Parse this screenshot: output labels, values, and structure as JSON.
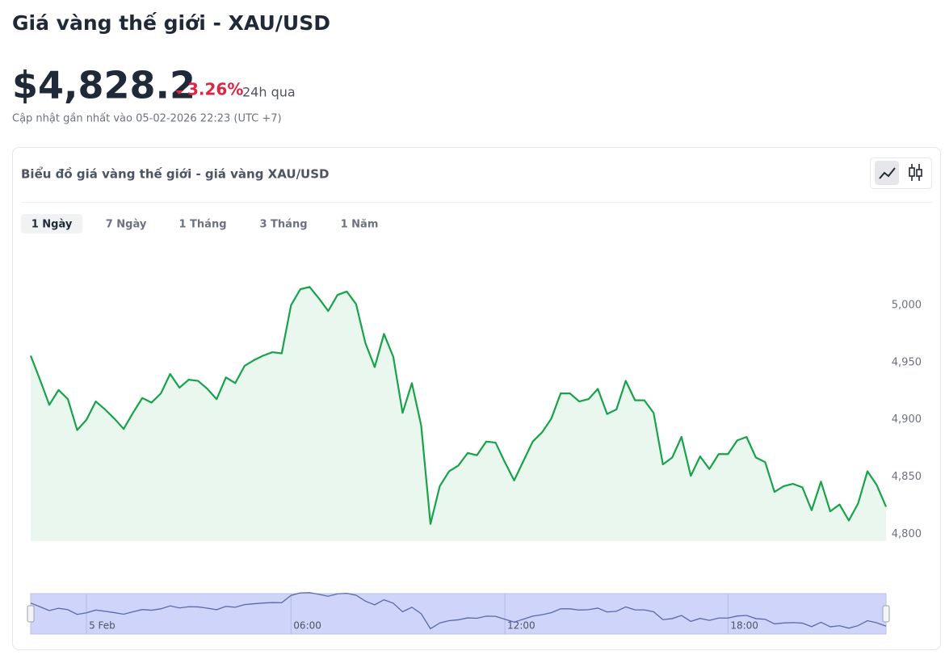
{
  "header": {
    "title": "Giá vàng thế giới - XAU/USD",
    "price": "$4,828.2",
    "change": "3.26%",
    "period": "24h qua",
    "updated": "Cập nhật gần nhất vào 05-02-2026 22:23 (UTC +7)"
  },
  "card": {
    "title": "Biểu đồ giá vàng thế giới - giá vàng XAU/USD",
    "tabs": [
      "1 Ngày",
      "7 Ngày",
      "1 Tháng",
      "3 Tháng",
      "1 Năm"
    ]
  },
  "chart_data": {
    "type": "area",
    "color": "#16a34a",
    "values": [
      4956,
      4935,
      4913,
      4926,
      4918,
      4891,
      4900,
      4916,
      4909,
      4901,
      4892,
      4906,
      4919,
      4915,
      4923,
      4940,
      4928,
      4935,
      4934,
      4927,
      4918,
      4937,
      4932,
      4947,
      4952,
      4956,
      4959,
      4958,
      5000,
      5014,
      5016,
      5006,
      4995,
      5009,
      5012,
      5001,
      4967,
      4946,
      4975,
      4955,
      4906,
      4932,
      4895,
      4809,
      4842,
      4855,
      4860,
      4871,
      4869,
      4881,
      4880,
      4863,
      4847,
      4864,
      4881,
      4889,
      4901,
      4923,
      4923,
      4916,
      4918,
      4927,
      4905,
      4909,
      4934,
      4917,
      4917,
      4906,
      4861,
      4867,
      4885,
      4851,
      4868,
      4857,
      4870,
      4870,
      4882,
      4885,
      4867,
      4863,
      4837,
      4842,
      4844,
      4841,
      4821,
      4846,
      4820,
      4826,
      4812,
      4827,
      4855,
      4843,
      4824
    ],
    "xlim": [
      0,
      92
    ],
    "ylim": [
      4794,
      5055
    ],
    "yticks": [
      {
        "value": 4800,
        "label": "4,800"
      },
      {
        "value": 4850,
        "label": "4,850"
      },
      {
        "value": 4900,
        "label": "4,900"
      },
      {
        "value": 4950,
        "label": "4,950"
      },
      {
        "value": 5000,
        "label": "5,000"
      }
    ],
    "navigator": {
      "xticks": [
        {
          "value": 6,
          "label": "5 Feb"
        },
        {
          "value": 28,
          "label": "06:00"
        },
        {
          "value": 51,
          "label": "12:00"
        },
        {
          "value": 75,
          "label": "18:00"
        }
      ]
    }
  }
}
